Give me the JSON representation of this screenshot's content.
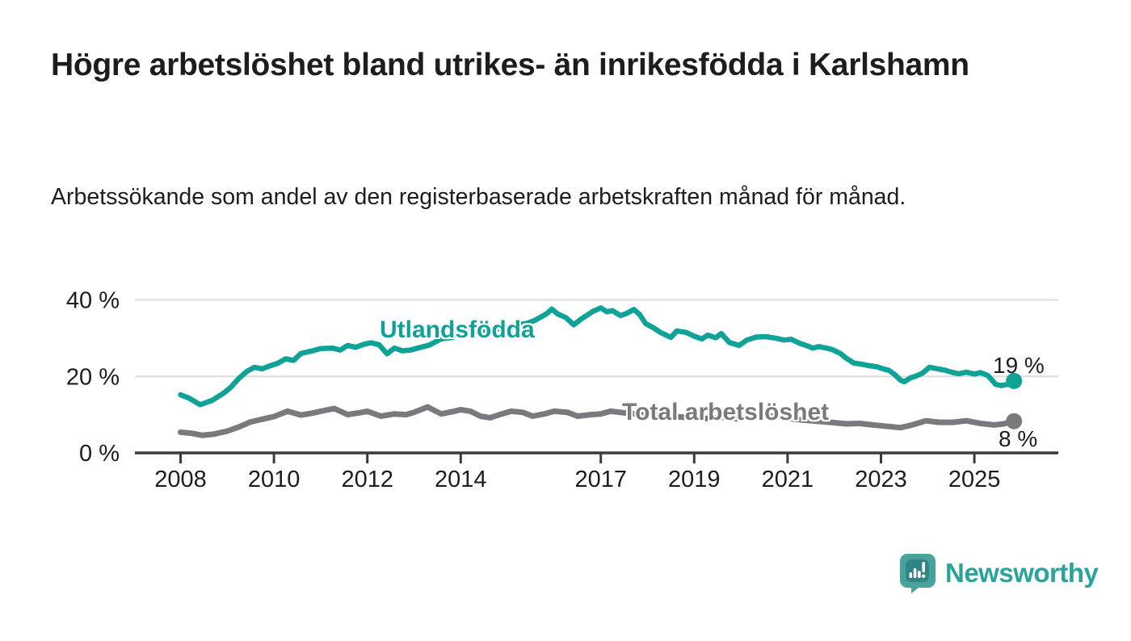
{
  "page": {
    "title": "Högre arbetslöshet bland utrikes- än inrikesfödda i Karlshamn",
    "subtitle": "Arbetssökande som andel av den registerbaserade arbetskraften månad för månad."
  },
  "branding": {
    "logo_text": "Newsworthy",
    "logo_icon": "speech-bubble-bar-chart-icon",
    "brand_color": "#2aa49b"
  },
  "colors": {
    "foreign_born_line": "#0ea396",
    "total_line": "#7a7a7e",
    "axis": "#3b3b3b",
    "gridline": "#dcdcdc",
    "text": "#1d1d1b",
    "background": "#ffffff"
  },
  "chart_data": {
    "type": "line",
    "title": "Högre arbetslöshet bland utrikes- än inrikesfödda i Karlshamn",
    "subtitle": "Arbetssökande som andel av den registerbaserade arbetskraften månad för månad.",
    "xlabel": "",
    "ylabel": "",
    "xlim": [
      2007.0,
      2026.8
    ],
    "ylim": [
      0,
      42
    ],
    "grid": "horizontal",
    "legend_position": "inline-labels",
    "x_ticks": [
      2008,
      2010,
      2012,
      2014,
      2017,
      2019,
      2021,
      2023,
      2025
    ],
    "y_ticks": [
      {
        "value": 0,
        "label": "0 %"
      },
      {
        "value": 20,
        "label": "20 %"
      },
      {
        "value": 40,
        "label": "40 %"
      }
    ],
    "series": [
      {
        "id": "utlandsfodda",
        "name": "Utlandsfödda",
        "color": "#0ea396",
        "width": 6.5,
        "end_label": "19 %",
        "end_value": 19,
        "points": [
          [
            2008.0,
            15.2
          ],
          [
            2008.17,
            14.4
          ],
          [
            2008.42,
            12.6
          ],
          [
            2008.67,
            13.7
          ],
          [
            2008.92,
            15.6
          ],
          [
            2009.08,
            17.2
          ],
          [
            2009.25,
            19.5
          ],
          [
            2009.42,
            21.3
          ],
          [
            2009.58,
            22.4
          ],
          [
            2009.75,
            22.0
          ],
          [
            2009.92,
            22.8
          ],
          [
            2010.08,
            23.4
          ],
          [
            2010.25,
            24.6
          ],
          [
            2010.42,
            24.2
          ],
          [
            2010.58,
            26.0
          ],
          [
            2010.83,
            26.7
          ],
          [
            2011.0,
            27.3
          ],
          [
            2011.25,
            27.4
          ],
          [
            2011.42,
            26.9
          ],
          [
            2011.58,
            28.1
          ],
          [
            2011.75,
            27.6
          ],
          [
            2011.92,
            28.4
          ],
          [
            2012.08,
            28.8
          ],
          [
            2012.25,
            28.3
          ],
          [
            2012.42,
            25.9
          ],
          [
            2012.58,
            27.4
          ],
          [
            2012.75,
            26.7
          ],
          [
            2012.92,
            26.9
          ],
          [
            2013.08,
            27.4
          ],
          [
            2013.33,
            28.2
          ],
          [
            2013.58,
            29.8
          ],
          [
            2013.83,
            30.2
          ],
          [
            2014.0,
            32.8
          ],
          [
            2014.17,
            31.9
          ],
          [
            2014.42,
            31.5
          ],
          [
            2014.67,
            32.3
          ],
          [
            2014.92,
            32.6
          ],
          [
            2015.17,
            33.4
          ],
          [
            2015.42,
            33.9
          ],
          [
            2015.58,
            34.6
          ],
          [
            2015.83,
            36.3
          ],
          [
            2015.95,
            37.6
          ],
          [
            2016.08,
            36.3
          ],
          [
            2016.25,
            35.4
          ],
          [
            2016.42,
            33.5
          ],
          [
            2016.58,
            35.0
          ],
          [
            2016.83,
            37.0
          ],
          [
            2017.0,
            37.9
          ],
          [
            2017.13,
            36.9
          ],
          [
            2017.25,
            37.2
          ],
          [
            2017.42,
            35.9
          ],
          [
            2017.54,
            36.4
          ],
          [
            2017.71,
            37.5
          ],
          [
            2017.83,
            36.2
          ],
          [
            2017.96,
            33.8
          ],
          [
            2018.13,
            32.7
          ],
          [
            2018.29,
            31.4
          ],
          [
            2018.5,
            30.2
          ],
          [
            2018.63,
            31.9
          ],
          [
            2018.83,
            31.5
          ],
          [
            2019.0,
            30.5
          ],
          [
            2019.17,
            29.8
          ],
          [
            2019.29,
            30.8
          ],
          [
            2019.46,
            30.1
          ],
          [
            2019.58,
            31.2
          ],
          [
            2019.75,
            28.9
          ],
          [
            2019.96,
            28.1
          ],
          [
            2020.13,
            29.5
          ],
          [
            2020.33,
            30.3
          ],
          [
            2020.54,
            30.4
          ],
          [
            2020.75,
            30.0
          ],
          [
            2020.92,
            29.5
          ],
          [
            2021.08,
            29.7
          ],
          [
            2021.25,
            28.7
          ],
          [
            2021.42,
            28.0
          ],
          [
            2021.54,
            27.4
          ],
          [
            2021.67,
            27.8
          ],
          [
            2021.83,
            27.4
          ],
          [
            2021.96,
            27.0
          ],
          [
            2022.13,
            26.0
          ],
          [
            2022.25,
            24.8
          ],
          [
            2022.42,
            23.5
          ],
          [
            2022.58,
            23.2
          ],
          [
            2022.75,
            22.8
          ],
          [
            2022.92,
            22.5
          ],
          [
            2023.04,
            22.0
          ],
          [
            2023.17,
            21.6
          ],
          [
            2023.29,
            20.5
          ],
          [
            2023.42,
            19.0
          ],
          [
            2023.5,
            18.6
          ],
          [
            2023.63,
            19.6
          ],
          [
            2023.75,
            20.1
          ],
          [
            2023.88,
            20.8
          ],
          [
            2024.04,
            22.4
          ],
          [
            2024.21,
            22.0
          ],
          [
            2024.38,
            21.6
          ],
          [
            2024.54,
            21.0
          ],
          [
            2024.67,
            20.7
          ],
          [
            2024.83,
            21.1
          ],
          [
            2025.0,
            20.6
          ],
          [
            2025.13,
            21.0
          ],
          [
            2025.29,
            20.2
          ],
          [
            2025.46,
            17.9
          ],
          [
            2025.58,
            17.6
          ],
          [
            2025.71,
            17.9
          ],
          [
            2025.85,
            18.8
          ]
        ]
      },
      {
        "id": "total-arbetsloshet",
        "name": "Total arbetslöshet",
        "color": "#7a7a7e",
        "width": 7,
        "end_label": "8 %",
        "end_value": 8,
        "points": [
          [
            2008.0,
            5.4
          ],
          [
            2008.25,
            5.1
          ],
          [
            2008.46,
            4.6
          ],
          [
            2008.71,
            4.9
          ],
          [
            2009.0,
            5.7
          ],
          [
            2009.25,
            6.8
          ],
          [
            2009.5,
            8.1
          ],
          [
            2009.75,
            8.8
          ],
          [
            2010.0,
            9.5
          ],
          [
            2010.29,
            10.9
          ],
          [
            2010.58,
            9.9
          ],
          [
            2010.83,
            10.4
          ],
          [
            2011.0,
            10.9
          ],
          [
            2011.29,
            11.6
          ],
          [
            2011.58,
            10.0
          ],
          [
            2011.83,
            10.5
          ],
          [
            2012.0,
            10.9
          ],
          [
            2012.29,
            9.6
          ],
          [
            2012.58,
            10.2
          ],
          [
            2012.83,
            10.0
          ],
          [
            2013.0,
            10.6
          ],
          [
            2013.29,
            12.0
          ],
          [
            2013.58,
            10.2
          ],
          [
            2013.83,
            10.8
          ],
          [
            2014.0,
            11.3
          ],
          [
            2014.21,
            10.9
          ],
          [
            2014.42,
            9.6
          ],
          [
            2014.63,
            9.2
          ],
          [
            2014.88,
            10.2
          ],
          [
            2015.08,
            10.9
          ],
          [
            2015.33,
            10.6
          ],
          [
            2015.54,
            9.6
          ],
          [
            2015.79,
            10.2
          ],
          [
            2016.0,
            10.9
          ],
          [
            2016.29,
            10.6
          ],
          [
            2016.5,
            9.6
          ],
          [
            2016.79,
            10.0
          ],
          [
            2017.0,
            10.2
          ],
          [
            2017.21,
            10.9
          ],
          [
            2017.42,
            10.6
          ],
          [
            2017.63,
            10.3
          ],
          [
            2017.92,
            10.0
          ],
          [
            2018.25,
            9.8
          ],
          [
            2018.58,
            9.5
          ],
          [
            2018.92,
            9.2
          ],
          [
            2019.25,
            9.0
          ],
          [
            2019.58,
            9.3
          ],
          [
            2019.92,
            8.9
          ],
          [
            2020.17,
            9.4
          ],
          [
            2020.46,
            9.8
          ],
          [
            2020.75,
            9.5
          ],
          [
            2021.04,
            9.0
          ],
          [
            2021.33,
            8.6
          ],
          [
            2021.63,
            8.3
          ],
          [
            2021.92,
            8.0
          ],
          [
            2022.25,
            7.6
          ],
          [
            2022.54,
            7.7
          ],
          [
            2022.83,
            7.3
          ],
          [
            2023.08,
            7.0
          ],
          [
            2023.42,
            6.6
          ],
          [
            2023.67,
            7.3
          ],
          [
            2023.96,
            8.4
          ],
          [
            2024.25,
            8.0
          ],
          [
            2024.54,
            8.0
          ],
          [
            2024.83,
            8.4
          ],
          [
            2025.13,
            7.7
          ],
          [
            2025.42,
            7.3
          ],
          [
            2025.63,
            7.6
          ],
          [
            2025.85,
            8.3
          ]
        ]
      }
    ]
  }
}
